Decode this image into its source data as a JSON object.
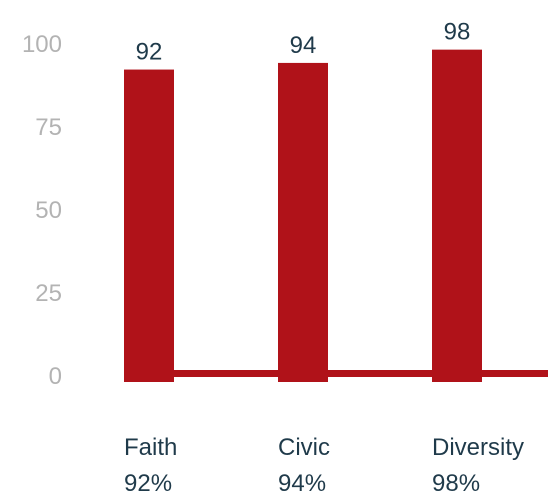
{
  "colors": {
    "bar": "#b01219",
    "tick_text": "#b3b3b3",
    "label_text": "#1f3a4a",
    "background": "#ffffff"
  },
  "chart_data": {
    "type": "bar",
    "title": "",
    "xlabel": "",
    "ylabel": "",
    "categories": [
      "Faith",
      "Civic",
      "Diversity"
    ],
    "values": [
      92,
      94,
      98
    ],
    "value_labels": [
      "92",
      "94",
      "98"
    ],
    "category_subtitles": [
      "92%",
      "94%",
      "98%"
    ],
    "ylim": [
      0,
      100
    ],
    "yticks": [
      0,
      25,
      50,
      75,
      100
    ],
    "grid": false,
    "legend": "none"
  }
}
